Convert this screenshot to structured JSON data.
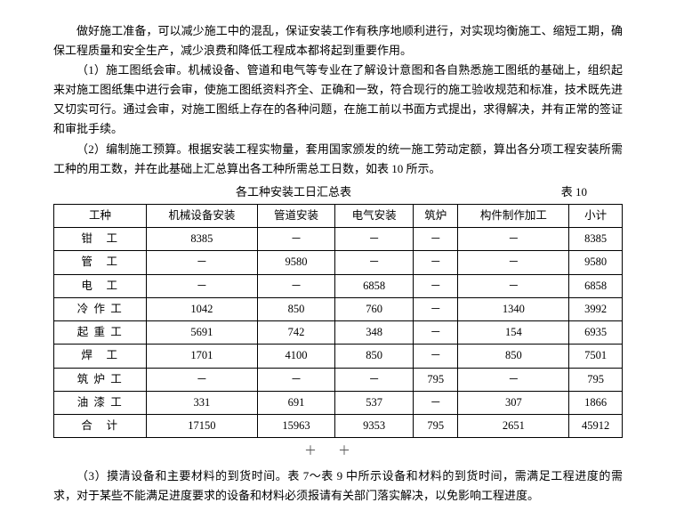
{
  "paragraphs": {
    "p0": "做好施工准备，可以减少施工中的混乱，保证安装工作有秩序地顺利进行，对实现均衡施工、缩短工期，确保工程质量和安全生产，减少浪费和降低工程成本都将起到重要作用。",
    "p1": "（1）施工图纸会审。机械设备、管道和电气等专业在了解设计意图和各自熟悉施工图纸的基础上，组织起来对施工图纸集中进行会审，使施工图纸资料齐全、正确和一致，符合现行的施工验收规范和标准，技术既先进又切实可行。通过会审，对施工图纸上存在的各种问题，在施工前以书面方式提出，求得解决，并有正常的签证和审批手续。",
    "p2": "（2）编制施工预算。根据安装工程实物量，套用国家颁发的统一施工劳动定额，算出各分项工程安装所需工种的用工数，并在此基础上汇总算出各工种所需总工日数，如表 10 所示。",
    "p3": "（3）摸清设备和主要材料的到货时间。表 7～表 9 中所示设备和材料的到货时间，需满足工程进度的需求，对于某些不能满足进度要求的设备和材料必须报请有关部门落实解决，以免影响工程进度。"
  },
  "table": {
    "title": "各工种安装工日汇总表",
    "label": "表 10",
    "headers": [
      "工种",
      "机械设备安装",
      "管道安装",
      "电气安装",
      "筑炉",
      "构件制作加工",
      "小计"
    ],
    "rows": [
      {
        "label": "钳 工",
        "c1": "8385",
        "c2": "－",
        "c3": "－",
        "c4": "－",
        "c5": "－",
        "c6": "8385"
      },
      {
        "label": "管 工",
        "c1": "－",
        "c2": "9580",
        "c3": "－",
        "c4": "－",
        "c5": "－",
        "c6": "9580"
      },
      {
        "label": "电 工",
        "c1": "－",
        "c2": "－",
        "c3": "6858",
        "c4": "－",
        "c5": "－",
        "c6": "6858"
      },
      {
        "label": "冷作工",
        "c1": "1042",
        "c2": "850",
        "c3": "760",
        "c4": "－",
        "c5": "1340",
        "c6": "3992"
      },
      {
        "label": "起重工",
        "c1": "5691",
        "c2": "742",
        "c3": "348",
        "c4": "－",
        "c5": "154",
        "c6": "6935"
      },
      {
        "label": "焊 工",
        "c1": "1701",
        "c2": "4100",
        "c3": "850",
        "c4": "－",
        "c5": "850",
        "c6": "7501"
      },
      {
        "label": "筑炉工",
        "c1": "－",
        "c2": "－",
        "c3": "－",
        "c4": "795",
        "c5": "－",
        "c6": "795"
      },
      {
        "label": "油漆工",
        "c1": "331",
        "c2": "691",
        "c3": "537",
        "c4": "－",
        "c5": "307",
        "c6": "1866"
      },
      {
        "label": "合 计",
        "c1": "17150",
        "c2": "15963",
        "c3": "9353",
        "c4": "795",
        "c5": "2651",
        "c6": "45912"
      }
    ]
  },
  "plus": "＋＋"
}
